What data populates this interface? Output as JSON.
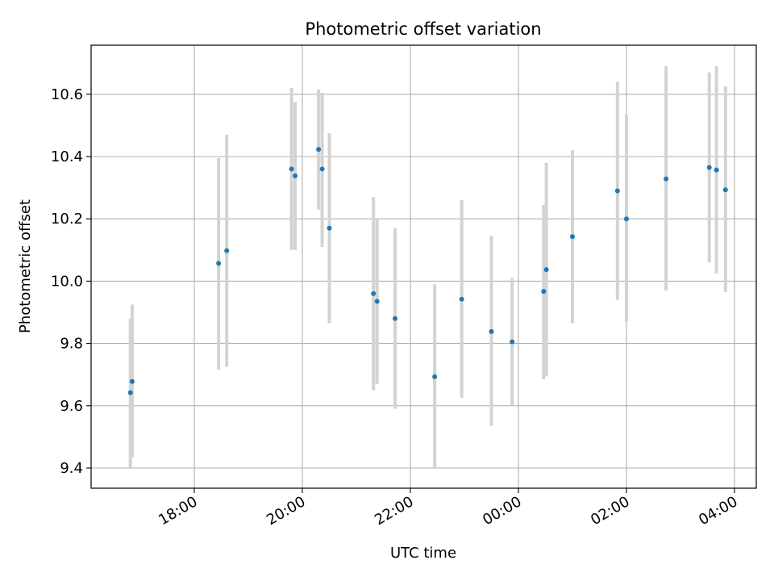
{
  "chart_data": {
    "type": "scatter",
    "title": "Photometric offset variation",
    "xlabel": "UTC time",
    "ylabel": "Photometric offset",
    "x_start_label": "16:00",
    "x_ticks": [
      "18:00",
      "20:00",
      "22:00",
      "00:00",
      "02:00",
      "04:00"
    ],
    "xlim": [
      "16:15",
      "04:25"
    ],
    "y_ticks": [
      "9.4",
      "9.6",
      "9.8",
      "10.0",
      "10.2",
      "10.4",
      "10.6"
    ],
    "ylim": [
      9.34,
      10.76
    ],
    "grid": true,
    "colors": {
      "marker": "#1f77b4",
      "errorbar": "#d3d3d3",
      "grid": "#b0b0b0"
    },
    "points": [
      {
        "x": "16:49",
        "y": 9.642,
        "ylo": 9.4,
        "yhi": 9.88
      },
      {
        "x": "16:51",
        "y": 9.678,
        "ylo": 9.435,
        "yhi": 9.925
      },
      {
        "x": "18:27",
        "y": 10.057,
        "ylo": 9.715,
        "yhi": 10.395
      },
      {
        "x": "18:36",
        "y": 10.098,
        "ylo": 9.725,
        "yhi": 10.47
      },
      {
        "x": "19:48",
        "y": 10.36,
        "ylo": 10.1,
        "yhi": 10.62
      },
      {
        "x": "19:52",
        "y": 10.338,
        "ylo": 10.1,
        "yhi": 10.575
      },
      {
        "x": "20:18",
        "y": 10.423,
        "ylo": 10.23,
        "yhi": 10.615
      },
      {
        "x": "20:22",
        "y": 10.36,
        "ylo": 10.11,
        "yhi": 10.605
      },
      {
        "x": "20:30",
        "y": 10.17,
        "ylo": 9.865,
        "yhi": 10.475
      },
      {
        "x": "21:19",
        "y": 9.96,
        "ylo": 9.65,
        "yhi": 10.27
      },
      {
        "x": "21:23",
        "y": 9.935,
        "ylo": 9.67,
        "yhi": 10.2
      },
      {
        "x": "21:43",
        "y": 9.88,
        "ylo": 9.59,
        "yhi": 10.17
      },
      {
        "x": "22:27",
        "y": 9.693,
        "ylo": 9.4,
        "yhi": 9.99
      },
      {
        "x": "22:57",
        "y": 9.942,
        "ylo": 9.625,
        "yhi": 10.26
      },
      {
        "x": "23:30",
        "y": 9.838,
        "ylo": 9.535,
        "yhi": 10.145
      },
      {
        "x": "23:53",
        "y": 9.805,
        "ylo": 9.6,
        "yhi": 10.01
      },
      {
        "x": "00:28",
        "y": 9.967,
        "ylo": 9.685,
        "yhi": 10.245
      },
      {
        "x": "00:31",
        "y": 10.037,
        "ylo": 9.695,
        "yhi": 10.38
      },
      {
        "x": "01:00",
        "y": 10.143,
        "ylo": 9.865,
        "yhi": 10.42
      },
      {
        "x": "01:50",
        "y": 10.29,
        "ylo": 9.94,
        "yhi": 10.64
      },
      {
        "x": "02:00",
        "y": 10.2,
        "ylo": 9.87,
        "yhi": 10.535
      },
      {
        "x": "02:44",
        "y": 10.328,
        "ylo": 9.97,
        "yhi": 10.69
      },
      {
        "x": "03:32",
        "y": 10.365,
        "ylo": 10.06,
        "yhi": 10.67
      },
      {
        "x": "03:40",
        "y": 10.357,
        "ylo": 10.025,
        "yhi": 10.69
      },
      {
        "x": "03:50",
        "y": 10.293,
        "ylo": 9.965,
        "yhi": 10.625
      }
    ]
  }
}
